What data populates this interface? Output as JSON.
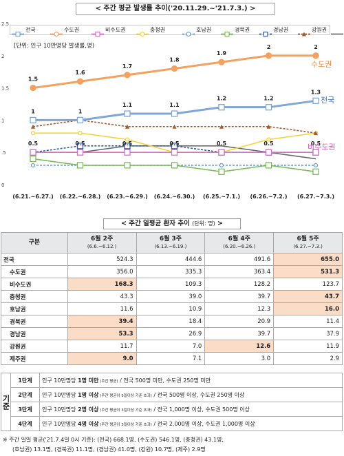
{
  "chart": {
    "title": "< 주간 평균 발생률 추이('20.11.29.~'21.7.3.) >",
    "unit_note": "[단위: 인구 10만명당 발생률,명)",
    "legend": [
      {
        "name": "전국",
        "color": "#7ea6d8",
        "marker": "square"
      },
      {
        "name": "수도권",
        "color": "#f4a15e",
        "marker": "circle"
      },
      {
        "name": "비수도권",
        "color": "#d96fc9",
        "marker": "square"
      },
      {
        "name": "충청권",
        "color": "#f3d33a",
        "marker": "circle"
      },
      {
        "name": "호남권",
        "color": "#6fa0e0",
        "marker": "circle-dotted"
      },
      {
        "name": "경북권",
        "color": "#7dbb5a",
        "marker": "square"
      },
      {
        "name": "경남권",
        "color": "#2e5aa8",
        "marker": "square-dashed"
      },
      {
        "name": "강원권",
        "color": "#a05a2c",
        "marker": "triangle-dashed"
      },
      {
        "name": "제주권",
        "color": "#6b6b6b",
        "marker": "none"
      }
    ],
    "series_callouts": {
      "수도권": "수도권",
      "전국": "전국",
      "비수도권": "비수도권"
    }
  },
  "chart_data": {
    "type": "line",
    "categories": [
      "(6.21.~6.27.)",
      "(6.22.~6.28.)",
      "(6.23.~6.29.)",
      "(6.24.~6.30.)",
      "(6.25.~7.1.)",
      "(6.26.~7.2.)",
      "(6.27.~7.3.)"
    ],
    "y_ticks": [
      "0",
      ".5",
      "1",
      "1.5",
      "2",
      "2.5"
    ],
    "ylim": [
      0,
      2.5
    ],
    "grid": false,
    "series": [
      {
        "name": "수도권",
        "values": [
          1.5,
          1.6,
          1.7,
          1.8,
          1.9,
          2.0,
          2.0
        ],
        "labels": [
          "1.5",
          "1.6",
          "1.7",
          "1.8",
          "1.9",
          "2",
          "2"
        ],
        "color": "#f4a15e"
      },
      {
        "name": "전국",
        "values": [
          1.0,
          1.0,
          1.1,
          1.1,
          1.2,
          1.2,
          1.3
        ],
        "labels": [
          "1",
          "1",
          "1.1",
          "1.1",
          "1.2",
          "1.2",
          "1.3"
        ],
        "color": "#7ea6d8"
      },
      {
        "name": "비수도권",
        "values": [
          0.5,
          0.5,
          0.5,
          0.5,
          0.5,
          0.5,
          0.5
        ],
        "labels": [
          "0.5",
          "0.5",
          "0.5",
          "0.5",
          "0.5",
          "0.5",
          "0.5"
        ],
        "color": "#d96fc9"
      },
      {
        "name": "충청권",
        "values": [
          0.8,
          0.8,
          0.7,
          0.5,
          0.5,
          0.7,
          0.8
        ],
        "color": "#f3d33a"
      },
      {
        "name": "호남권",
        "values": [
          0.3,
          0.3,
          0.3,
          0.3,
          0.3,
          0.3,
          0.3
        ],
        "color": "#6fa0e0"
      },
      {
        "name": "경북권",
        "values": [
          0.4,
          0.3,
          0.3,
          0.3,
          0.2,
          0.3,
          0.2
        ],
        "color": "#7dbb5a"
      },
      {
        "name": "경남권",
        "values": [
          0.5,
          0.6,
          0.6,
          0.6,
          0.5,
          0.5,
          0.5
        ],
        "color": "#2e5aa8"
      },
      {
        "name": "강원권",
        "values": [
          0.9,
          1.0,
          0.9,
          0.9,
          0.9,
          0.9,
          0.8
        ],
        "color": "#a05a2c"
      },
      {
        "name": "제주권",
        "values": [
          0.5,
          0.5,
          0.6,
          0.6,
          0.6,
          0.5,
          0.4
        ],
        "color": "#6b6b6b"
      }
    ]
  },
  "table": {
    "title": "< 주간 일평균 환자 추이",
    "title_unit": "(단위: 명)",
    "title_end": ">",
    "header": {
      "corner": "구분",
      "weeks": [
        {
          "label": "6월 2주",
          "range": "(6.6.~6.12.)"
        },
        {
          "label": "6월 3주",
          "range": "(6.13.~6.19.)"
        },
        {
          "label": "6월 4주",
          "range": "(6.20.~6.26.)"
        },
        {
          "label": "6월 5주",
          "range": "(6.27.~7.3.)"
        }
      ]
    },
    "rows": [
      {
        "name": "전국",
        "values": [
          "524.3",
          "444.6",
          "491.6",
          "655.0"
        ],
        "highlight": [
          false,
          false,
          false,
          true
        ],
        "indent": false
      },
      {
        "name": "수도권",
        "values": [
          "356.0",
          "335.3",
          "363.4",
          "531.3"
        ],
        "highlight": [
          false,
          false,
          false,
          true
        ],
        "indent": true
      },
      {
        "name": "비수도권",
        "values": [
          "168.3",
          "109.3",
          "128.2",
          "123.7"
        ],
        "highlight": [
          true,
          false,
          false,
          false
        ],
        "indent": true
      },
      {
        "name": "충청권",
        "values": [
          "43.3",
          "39.0",
          "39.7",
          "43.7"
        ],
        "highlight": [
          false,
          false,
          false,
          true
        ],
        "indent": true
      },
      {
        "name": "호남권",
        "values": [
          "11.6",
          "10.9",
          "12.3",
          "16.0"
        ],
        "highlight": [
          false,
          false,
          false,
          true
        ],
        "indent": true
      },
      {
        "name": "경북권",
        "values": [
          "39.4",
          "18.4",
          "20.9",
          "11.4"
        ],
        "highlight": [
          true,
          false,
          false,
          false
        ],
        "indent": true
      },
      {
        "name": "경남권",
        "values": [
          "53.3",
          "26.9",
          "39.7",
          "37.9"
        ],
        "highlight": [
          true,
          false,
          false,
          false
        ],
        "indent": true
      },
      {
        "name": "강원권",
        "values": [
          "11.7",
          "7.0",
          "12.6",
          "11.9"
        ],
        "highlight": [
          false,
          false,
          true,
          false
        ],
        "indent": true
      },
      {
        "name": "제주권",
        "values": [
          "9.0",
          "7.1",
          "3.0",
          "2.9"
        ],
        "highlight": [
          true,
          false,
          false,
          false
        ],
        "indent": true
      }
    ]
  },
  "criteria": {
    "group_label": "기준",
    "rows": [
      {
        "level": "1단계",
        "text_a": "인구 10만명당 ",
        "bold_a": "1명 미만",
        "small": " (주간 평균)",
        "text_b": " / 전국 500명 미만, 수도권 250명 미만"
      },
      {
        "level": "2단계",
        "text_a": "인구 10만명당 ",
        "bold_a": "1명 이상",
        "small": " (주간 평균이 3일이상 기준 초과)",
        "text_b": " / 전국 500명 이상, 수도권 250명 이상"
      },
      {
        "level": "3단계",
        "text_a": "인구 10만명당 ",
        "bold_a": "2명 이상",
        "small": " (주간 평균이 3일이상 기준 초과)",
        "text_b": " / 전국 1,000명 이상, 수도권 500명 이상"
      },
      {
        "level": "4단계",
        "text_a": "인구 10만명당 ",
        "bold_a": "4명 이상",
        "small": " (주간 평균이 3일이상 기준 초과)",
        "text_b": " / 전국 2,000명 이상, 수도권 1,000명 이상"
      }
    ]
  },
  "footnote": {
    "line1": "※ 주간 일일 평균('21.7.4일 0시 기준): (전국) 668.1명, (수도권) 546.1명, (충청권) 43.1명,",
    "line2": "(호남권) 13.1명, (경북권) 11.1명, (경남권) 41.0명, (강원) 10.7명, (제주) 2.9명"
  }
}
